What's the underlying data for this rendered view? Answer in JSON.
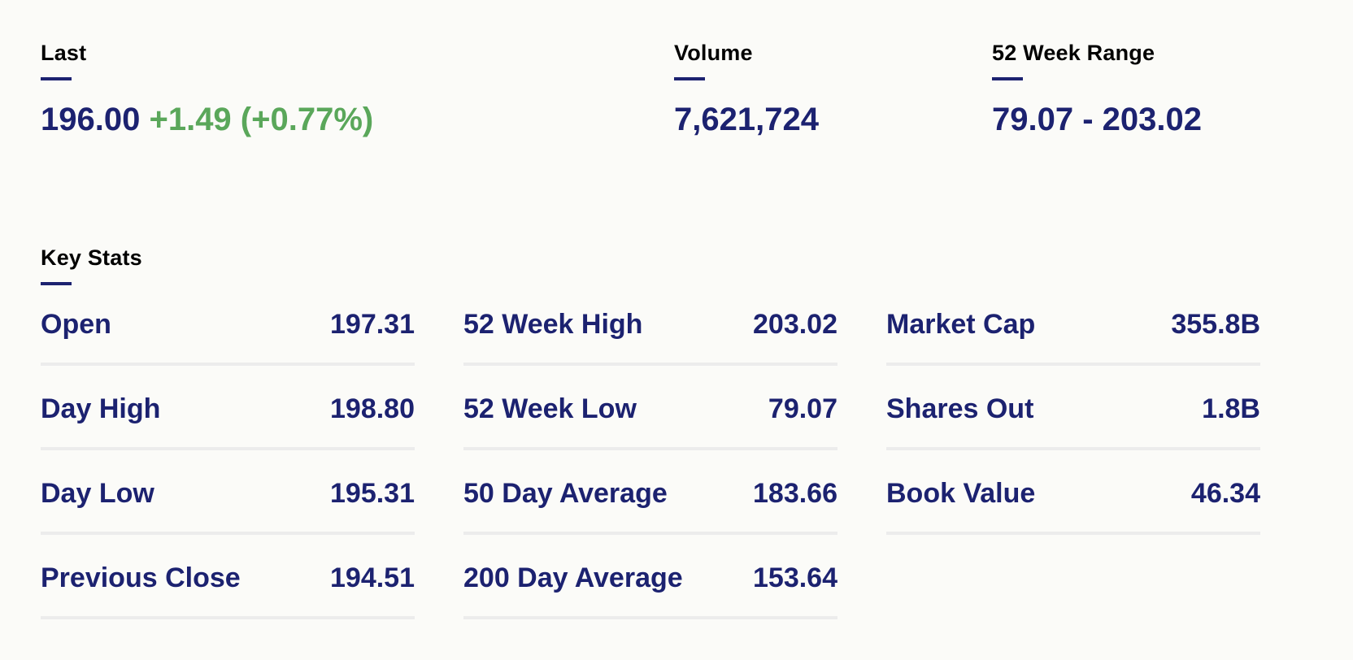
{
  "quote": {
    "last": {
      "label": "Last",
      "price": "196.00",
      "change": "+1.49 (+0.77%)"
    },
    "volume": {
      "label": "Volume",
      "value": "7,621,724"
    },
    "range_52w": {
      "label": "52 Week Range",
      "value": "79.07 - 203.02"
    }
  },
  "key_stats": {
    "title": "Key Stats",
    "columns": [
      [
        {
          "label": "Open",
          "value": "197.31"
        },
        {
          "label": "Day High",
          "value": "198.80"
        },
        {
          "label": "Day Low",
          "value": "195.31"
        },
        {
          "label": "Previous Close",
          "value": "194.51"
        }
      ],
      [
        {
          "label": "52 Week High",
          "value": "203.02"
        },
        {
          "label": "52 Week Low",
          "value": "79.07"
        },
        {
          "label": "50 Day Average",
          "value": "183.66"
        },
        {
          "label": "200 Day Average",
          "value": "153.64"
        }
      ],
      [
        {
          "label": "Market Cap",
          "value": "355.8B"
        },
        {
          "label": "Shares Out",
          "value": "1.8B"
        },
        {
          "label": "Book Value",
          "value": "46.34"
        }
      ]
    ]
  },
  "colors": {
    "primary": "#1c2270",
    "positive_change": "#5aa75a",
    "divider": "#ececec",
    "background": "#fbfbf8"
  }
}
